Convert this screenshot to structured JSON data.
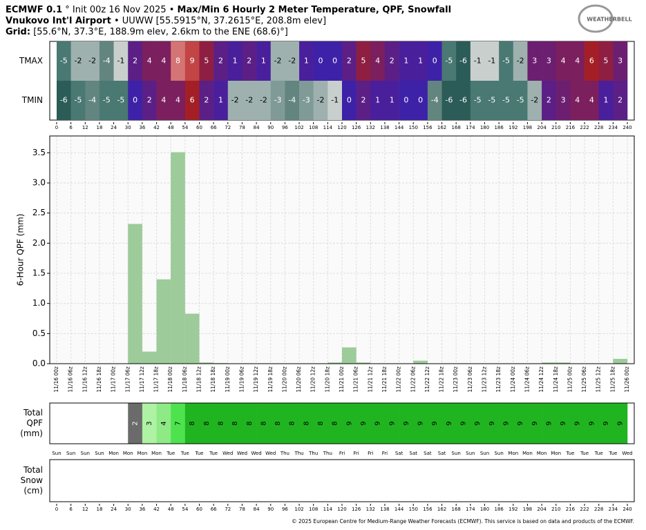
{
  "header": {
    "line1": [
      "ECMWF 0.1",
      "° Init 00z 16 Nov 2025 •",
      "Max/Min 6 Hourly 2 Meter Temperature,  QPF,  Snowfall"
    ],
    "line2": [
      "Vnukovo Int'l Airport",
      "• UUWW [55.5915°N, 37.2615°E, 208.8m elev]"
    ],
    "line3": [
      "Grid:",
      "[55.6°N, 37.3°E, 188.9m elev, 2.6km to the ENE (68.6)°]"
    ]
  },
  "logo": "WEATHERBELL",
  "footer": "© 2025 European Centre for Medium-Range Weather Forecasts (ECMWF). This service is based on data and products of the ECMWF.",
  "chart_data": [
    {
      "type": "heatmap",
      "hours": [
        0,
        6,
        12,
        18,
        24,
        30,
        36,
        42,
        48,
        54,
        60,
        66,
        72,
        78,
        84,
        90,
        96,
        102,
        108,
        114,
        120,
        126,
        132,
        138,
        144,
        150,
        156,
        162,
        168,
        174,
        180,
        186,
        192,
        198,
        204,
        210,
        216,
        222,
        228,
        234,
        240
      ],
      "rows": [
        {
          "name": "TMAX",
          "values": [
            -5,
            -2,
            -2,
            -4,
            -1,
            2,
            4,
            4,
            8,
            9,
            5,
            2,
            1,
            2,
            1,
            -2,
            -2,
            1,
            0,
            0,
            2,
            5,
            4,
            2,
            1,
            1,
            0,
            -5,
            -6,
            -1,
            -1,
            -5,
            -2,
            3,
            3,
            4,
            4,
            6,
            5,
            3
          ]
        },
        {
          "name": "TMIN",
          "values": [
            -6,
            -5,
            -4,
            -5,
            -5,
            0,
            2,
            4,
            4,
            6,
            2,
            1,
            -2,
            -2,
            -2,
            -3,
            -4,
            -3,
            -2,
            -1,
            0,
            2,
            1,
            1,
            0,
            0,
            -4,
            -6,
            -6,
            -5,
            -5,
            -5,
            -5,
            -2,
            2,
            3,
            4,
            4,
            1,
            2
          ]
        }
      ]
    },
    {
      "type": "bar",
      "ylabel": "6-Hour QPF (mm)",
      "color": "#9dcb99",
      "grid": true,
      "x_labels": [
        "11/16 00z",
        "11/16 06z",
        "11/16 12z",
        "11/16 18z",
        "11/17 00z",
        "11/17 06z",
        "11/17 12z",
        "11/17 18z",
        "11/18 00z",
        "11/18 06z",
        "11/18 12z",
        "11/18 18z",
        "11/19 00z",
        "11/19 06z",
        "11/19 12z",
        "11/19 18z",
        "11/20 00z",
        "11/20 06z",
        "11/20 12z",
        "11/20 18z",
        "11/21 00z",
        "11/21 06z",
        "11/21 12z",
        "11/21 18z",
        "11/22 00z",
        "11/22 06z",
        "11/22 12z",
        "11/22 18z",
        "11/23 00z",
        "11/23 06z",
        "11/23 12z",
        "11/23 18z",
        "11/24 00z",
        "11/24 06z",
        "11/24 12z",
        "11/24 18z",
        "11/25 00z",
        "11/25 06z",
        "11/25 12z",
        "11/25 18z",
        "11/26 00z"
      ],
      "values": [
        0,
        0,
        0,
        0,
        0,
        2.32,
        0.2,
        1.4,
        3.51,
        0.83,
        0.02,
        0.01,
        0,
        0,
        0,
        0,
        0,
        0,
        0,
        0.02,
        0.27,
        0.02,
        0,
        0,
        0,
        0.05,
        0,
        0,
        0,
        0,
        0,
        0,
        0,
        0,
        0.02,
        0.02,
        0,
        0,
        0,
        0.08
      ],
      "ylim": [
        0,
        3.78
      ],
      "yticks": [
        {
          "value": 0,
          "label": "0.0"
        },
        0.5,
        {
          "value": 1,
          "label": "1.0"
        },
        1.5,
        {
          "value": 2,
          "label": "2.0"
        },
        2.5,
        {
          "value": 3,
          "label": "3.0"
        },
        3.5
      ]
    },
    {
      "type": "strip",
      "label_lines": [
        "Total",
        "QPF",
        "(mm)"
      ],
      "values": [
        null,
        null,
        null,
        null,
        null,
        2,
        3,
        4,
        7,
        8,
        8,
        8,
        8,
        8,
        8,
        8,
        8,
        8,
        8,
        8,
        9,
        9,
        9,
        9,
        9,
        9,
        9,
        9,
        9,
        9,
        9,
        9,
        9,
        9,
        9,
        9,
        9,
        9,
        9,
        9
      ],
      "day_labels": [
        "Sun",
        "Sun",
        "Sun",
        "Sun",
        "Mon",
        "Mon",
        "Mon",
        "Mon",
        "Tue",
        "Tue",
        "Tue",
        "Tue",
        "Wed",
        "Wed",
        "Wed",
        "Wed",
        "Thu",
        "Thu",
        "Thu",
        "Thu",
        "Fri",
        "Fri",
        "Fri",
        "Fri",
        "Sat",
        "Sat",
        "Sat",
        "Sat",
        "Sun",
        "Sun",
        "Sun",
        "Sun",
        "Mon",
        "Mon",
        "Mon",
        "Mon",
        "Tue",
        "Tue",
        "Tue",
        "Tue",
        "Wed"
      ]
    },
    {
      "type": "strip",
      "label_lines": [
        "Total",
        "Snow",
        "(cm)"
      ],
      "values": []
    }
  ]
}
